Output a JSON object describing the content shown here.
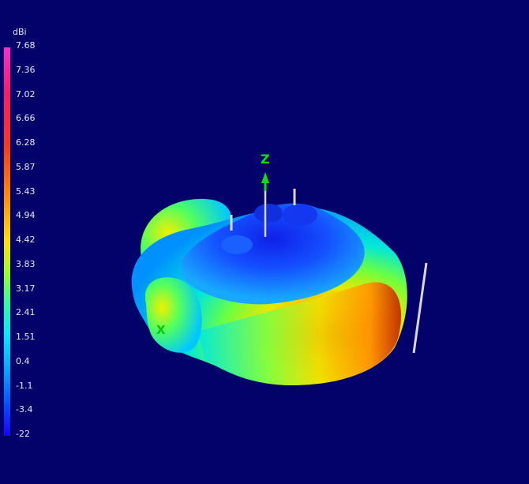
{
  "legend": {
    "unit": "dBi",
    "ticks": [
      "7.68",
      "7.36",
      "7.02",
      "6.66",
      "6.28",
      "5.87",
      "5.43",
      "4.94",
      "4.42",
      "3.83",
      "3.17",
      "2.41",
      "1.51",
      "0.4",
      "-1.1",
      "-3.4",
      "-22"
    ]
  },
  "axes": {
    "z": "Z",
    "x": "X"
  },
  "colors": {
    "background": "#03026b"
  }
}
